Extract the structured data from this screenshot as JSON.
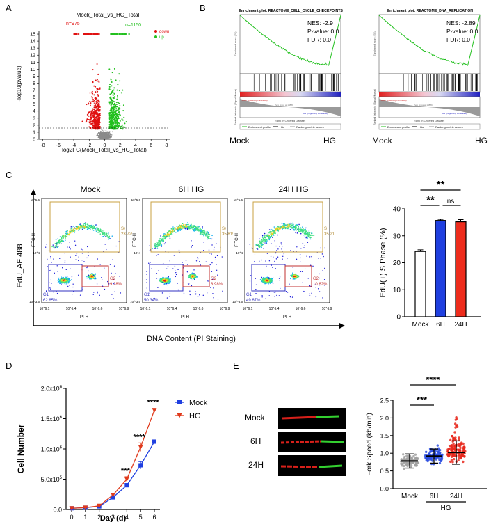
{
  "panels": {
    "a": "A",
    "b": "B",
    "c": "C",
    "d": "D",
    "e": "E"
  },
  "volcano": {
    "title": "Mock_Total_vs_HG_Total",
    "xlabel": "log2FC(Mock_Total_vs_HG_Total)",
    "ylabel": "-log10(pvalue)",
    "down_count": "n=975",
    "up_count": "n=1150",
    "legend_down": "down",
    "legend_up": "up",
    "xticks": [
      "-8",
      "-6",
      "-4",
      "-2",
      "0",
      "2",
      "4",
      "6",
      "8"
    ],
    "yticks": [
      "0",
      "1",
      "2",
      "3",
      "4",
      "5",
      "6",
      "7",
      "8",
      "9",
      "10",
      "11",
      "12",
      "13",
      "14",
      "15"
    ],
    "colors": {
      "down": "#e01010",
      "up": "#22c01e",
      "ns": "#8a8a8a"
    }
  },
  "gsea": [
    {
      "title": "Enrichment plot: REACTOME_CELL_CYCLE_CHECKPOINTS",
      "nes": "NES: -2.9",
      "pval": "P-value: 0.0",
      "fdr": "FDR: 0.0",
      "left": "Mock",
      "right": "HG"
    },
    {
      "title": "Enrichment plot: REACTOME_DNA_REPLICATION",
      "nes": "NES: -2.89",
      "pval": "P-value: 0.0",
      "fdr": "FDR: 0.0",
      "left": "Mock",
      "right": "HG"
    }
  ],
  "gsea_common": {
    "ylabel_top": "Enrichment score (ES)",
    "ylabel_bottom": "Ranked list metric (Signal2Noise)",
    "xlabel": "Rank in Ordered Dataset",
    "legend": [
      "Enrichment profile",
      "Hits",
      "Ranking metric scores"
    ],
    "zero_cross": "Zero cross at 10889",
    "neg_corr": "'HG' (negatively correlated)",
    "pos_corr": "'Mock' (positively correlated)"
  },
  "flow": {
    "y_axis": "EdU_AF 488",
    "x_axis": "DNA Content (PI Staining)",
    "plot_ylabel": "FITC-H",
    "plot_xlabel": "PI-H",
    "xticks": [
      "10^6.1",
      "10^6.4",
      "10^6.6",
      "10^6.9"
    ],
    "yticks": [
      "10^5.6",
      "10^4",
      "10^-3.5"
    ],
    "samples": [
      {
        "name": "Mock",
        "s": "S+\n23.72%",
        "g1": "G1\n62.85%",
        "g2": "G2\n9.28%"
      },
      {
        "name": "6H HG",
        "s": "S+\n35.81%",
        "g1": "G1\n50.34%",
        "g2": "G2\n8.98%"
      },
      {
        "name": "24H HG",
        "s": "S+\n35.21%",
        "g1": "G1\n49.67%",
        "g2": "G2\n10.62%"
      }
    ]
  },
  "chart_data": [
    {
      "type": "bar",
      "id": "edu",
      "categories": [
        "Mock",
        "6H",
        "24H"
      ],
      "values": [
        24.2,
        35.7,
        35.2
      ],
      "errors": [
        0.6,
        0.4,
        0.8
      ],
      "colors": [
        "#ffffff",
        "#1f3fe0",
        "#ee2c1c"
      ],
      "ylabel": "EdU(+) S Phase (%)",
      "ylim": [
        0,
        40
      ],
      "yticks": [
        0,
        10,
        20,
        30,
        40
      ],
      "annotations": [
        {
          "text": "**",
          "from": "Mock",
          "to": "24H"
        },
        {
          "text": "**",
          "from": "Mock",
          "to": "6H"
        },
        {
          "text": "ns",
          "from": "6H",
          "to": "24H"
        }
      ]
    },
    {
      "type": "line",
      "id": "growth",
      "x": [
        0,
        1,
        2,
        3,
        4,
        5,
        6
      ],
      "series": [
        {
          "name": "Mock",
          "values": [
            20000,
            30000,
            50000,
            200000,
            400000,
            730000,
            1120000
          ],
          "errors": [
            5000,
            5000,
            10000,
            20000,
            30000,
            60000,
            30000
          ],
          "color": "#1f3fe0",
          "marker": "square"
        },
        {
          "name": "HG",
          "values": [
            20000,
            30000,
            60000,
            240000,
            500000,
            1030000,
            1640000
          ],
          "errors": [
            5000,
            5000,
            10000,
            20000,
            40000,
            70000,
            30000
          ],
          "color": "#e03a1c",
          "marker": "triangle-down"
        }
      ],
      "xlabel": "Day (d)",
      "ylabel": "Cell Number",
      "ylim": [
        0,
        2000000
      ],
      "yticks": [
        "0.0",
        "5.0x10^5",
        "1.0x10^6",
        "1.5x10^6",
        "2.0x10^6"
      ],
      "sig": [
        {
          "x": 4,
          "text": "***"
        },
        {
          "x": 5,
          "text": "****"
        },
        {
          "x": 6,
          "text": "****"
        }
      ]
    },
    {
      "type": "scatter",
      "id": "fork",
      "categories": [
        "Mock",
        "6H",
        "24H"
      ],
      "medians": [
        0.78,
        0.92,
        1.02
      ],
      "sd": [
        0.2,
        0.2,
        0.33
      ],
      "colors": [
        "#a0a0a0",
        "#2b4de0",
        "#e8281c"
      ],
      "ylabel": "Fork Speed (kb/min)",
      "ylim": [
        0,
        2.5
      ],
      "yticks": [
        "0.0",
        "0.5",
        "1.0",
        "1.5",
        "2.0",
        "2.5"
      ],
      "group_label": "HG",
      "annotations": [
        {
          "text": "****",
          "from": "Mock",
          "to": "24H"
        },
        {
          "text": "***",
          "from": "Mock",
          "to": "6H"
        }
      ]
    }
  ],
  "fiber_labels": [
    "Mock",
    "6H",
    "24H"
  ]
}
